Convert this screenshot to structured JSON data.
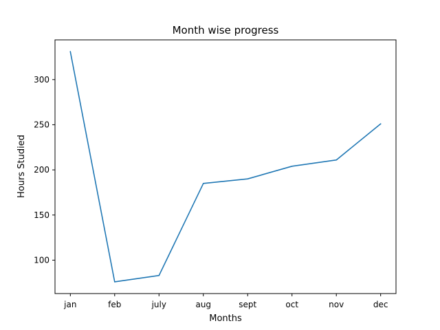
{
  "chart_data": {
    "type": "line",
    "title": "Month wise progress",
    "xlabel": "Months",
    "ylabel": "Hours Studied",
    "categories": [
      "jan",
      "feb",
      "july",
      "aug",
      "sept",
      "oct",
      "nov",
      "dec"
    ],
    "series": [
      {
        "values": [
          331,
          76,
          83,
          185,
          190,
          204,
          211,
          251
        ]
      }
    ],
    "yticks": [
      100,
      150,
      200,
      250,
      300
    ],
    "ylim": [
      63,
      344
    ],
    "grid": false,
    "line_color": "#1f77b4"
  }
}
